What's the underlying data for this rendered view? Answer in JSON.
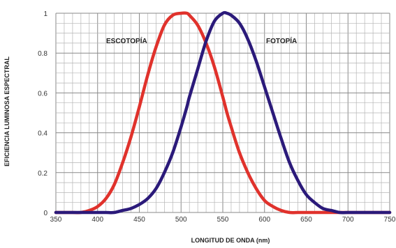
{
  "chart_data": {
    "type": "line",
    "xlabel": "LONGITUD DE ONDA (nm)",
    "ylabel": "EFICIENCIA LUMINOSA ESPECTRAL",
    "xlim": [
      350,
      750
    ],
    "ylim": [
      0,
      1
    ],
    "grid": true,
    "x_ticks": [
      "350",
      "400",
      "450",
      "500",
      "550",
      "600",
      "650",
      "700",
      "750"
    ],
    "y_ticks": [
      "0",
      "0.2",
      "0.4",
      "0.6",
      "0.8",
      "1"
    ],
    "x": [
      350,
      360,
      370,
      380,
      390,
      400,
      410,
      420,
      430,
      440,
      450,
      460,
      470,
      480,
      490,
      500,
      507,
      510,
      520,
      530,
      540,
      550,
      555,
      560,
      570,
      580,
      590,
      600,
      610,
      620,
      630,
      640,
      650,
      660,
      670,
      680,
      690,
      700,
      710,
      720,
      730,
      740,
      750
    ],
    "series": [
      {
        "name": "ESCOTOPÍA",
        "color": "#e0322c",
        "values": [
          0.0,
          0.0,
          0.0,
          0.0,
          0.01,
          0.03,
          0.07,
          0.14,
          0.25,
          0.38,
          0.53,
          0.69,
          0.83,
          0.94,
          0.99,
          1.0,
          1.0,
          0.99,
          0.94,
          0.85,
          0.73,
          0.58,
          0.5,
          0.43,
          0.3,
          0.2,
          0.12,
          0.06,
          0.03,
          0.01,
          0.0,
          0.0,
          0.0,
          0.0,
          0.0,
          0.0,
          0.0,
          0.0,
          0.0,
          0.0,
          0.0,
          0.0,
          0.0
        ]
      },
      {
        "name": "FOTOPÍA",
        "color": "#2b1a7a",
        "values": [
          0.0,
          0.0,
          0.0,
          0.0,
          0.0,
          0.0,
          0.0,
          0.0,
          0.01,
          0.02,
          0.04,
          0.07,
          0.12,
          0.2,
          0.3,
          0.43,
          0.53,
          0.58,
          0.72,
          0.86,
          0.96,
          1.0,
          1.0,
          0.99,
          0.95,
          0.87,
          0.76,
          0.63,
          0.5,
          0.37,
          0.25,
          0.16,
          0.09,
          0.05,
          0.02,
          0.01,
          0.0,
          0.0,
          0.0,
          0.0,
          0.0,
          0.0,
          0.0
        ]
      }
    ]
  }
}
